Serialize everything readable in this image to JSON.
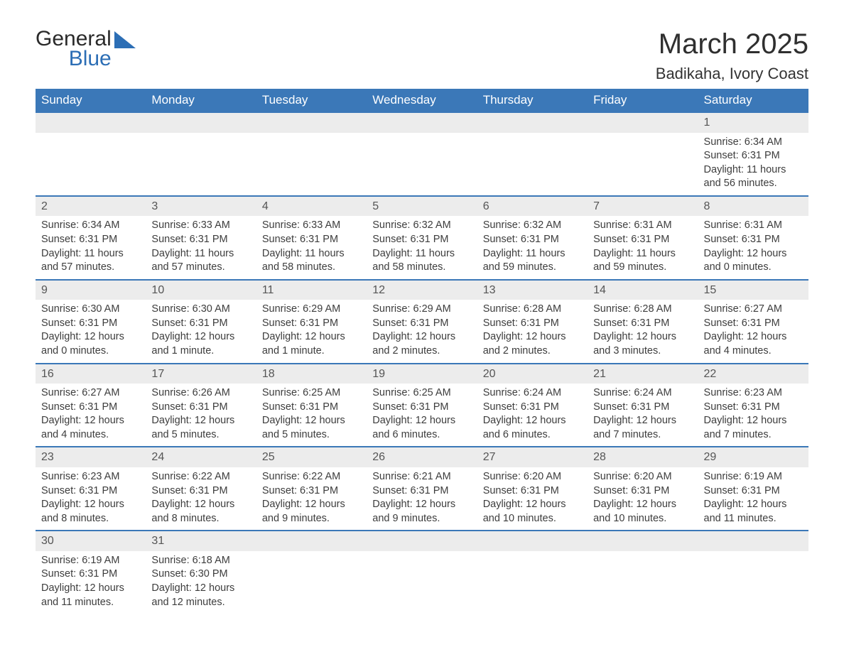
{
  "logo": {
    "general": "General",
    "blue": "Blue"
  },
  "title": "March 2025",
  "subtitle": "Badikaha, Ivory Coast",
  "colors": {
    "header_bg": "#3b78b8",
    "header_text": "#ffffff",
    "daynum_bg": "#ececec",
    "border": "#3b78b8",
    "text": "#3d3d3d"
  },
  "weekdays": [
    "Sunday",
    "Monday",
    "Tuesday",
    "Wednesday",
    "Thursday",
    "Friday",
    "Saturday"
  ],
  "weeks": [
    [
      null,
      null,
      null,
      null,
      null,
      null,
      {
        "n": "1",
        "sunrise": "Sunrise: 6:34 AM",
        "sunset": "Sunset: 6:31 PM",
        "daylight": "Daylight: 11 hours and 56 minutes."
      }
    ],
    [
      {
        "n": "2",
        "sunrise": "Sunrise: 6:34 AM",
        "sunset": "Sunset: 6:31 PM",
        "daylight": "Daylight: 11 hours and 57 minutes."
      },
      {
        "n": "3",
        "sunrise": "Sunrise: 6:33 AM",
        "sunset": "Sunset: 6:31 PM",
        "daylight": "Daylight: 11 hours and 57 minutes."
      },
      {
        "n": "4",
        "sunrise": "Sunrise: 6:33 AM",
        "sunset": "Sunset: 6:31 PM",
        "daylight": "Daylight: 11 hours and 58 minutes."
      },
      {
        "n": "5",
        "sunrise": "Sunrise: 6:32 AM",
        "sunset": "Sunset: 6:31 PM",
        "daylight": "Daylight: 11 hours and 58 minutes."
      },
      {
        "n": "6",
        "sunrise": "Sunrise: 6:32 AM",
        "sunset": "Sunset: 6:31 PM",
        "daylight": "Daylight: 11 hours and 59 minutes."
      },
      {
        "n": "7",
        "sunrise": "Sunrise: 6:31 AM",
        "sunset": "Sunset: 6:31 PM",
        "daylight": "Daylight: 11 hours and 59 minutes."
      },
      {
        "n": "8",
        "sunrise": "Sunrise: 6:31 AM",
        "sunset": "Sunset: 6:31 PM",
        "daylight": "Daylight: 12 hours and 0 minutes."
      }
    ],
    [
      {
        "n": "9",
        "sunrise": "Sunrise: 6:30 AM",
        "sunset": "Sunset: 6:31 PM",
        "daylight": "Daylight: 12 hours and 0 minutes."
      },
      {
        "n": "10",
        "sunrise": "Sunrise: 6:30 AM",
        "sunset": "Sunset: 6:31 PM",
        "daylight": "Daylight: 12 hours and 1 minute."
      },
      {
        "n": "11",
        "sunrise": "Sunrise: 6:29 AM",
        "sunset": "Sunset: 6:31 PM",
        "daylight": "Daylight: 12 hours and 1 minute."
      },
      {
        "n": "12",
        "sunrise": "Sunrise: 6:29 AM",
        "sunset": "Sunset: 6:31 PM",
        "daylight": "Daylight: 12 hours and 2 minutes."
      },
      {
        "n": "13",
        "sunrise": "Sunrise: 6:28 AM",
        "sunset": "Sunset: 6:31 PM",
        "daylight": "Daylight: 12 hours and 2 minutes."
      },
      {
        "n": "14",
        "sunrise": "Sunrise: 6:28 AM",
        "sunset": "Sunset: 6:31 PM",
        "daylight": "Daylight: 12 hours and 3 minutes."
      },
      {
        "n": "15",
        "sunrise": "Sunrise: 6:27 AM",
        "sunset": "Sunset: 6:31 PM",
        "daylight": "Daylight: 12 hours and 4 minutes."
      }
    ],
    [
      {
        "n": "16",
        "sunrise": "Sunrise: 6:27 AM",
        "sunset": "Sunset: 6:31 PM",
        "daylight": "Daylight: 12 hours and 4 minutes."
      },
      {
        "n": "17",
        "sunrise": "Sunrise: 6:26 AM",
        "sunset": "Sunset: 6:31 PM",
        "daylight": "Daylight: 12 hours and 5 minutes."
      },
      {
        "n": "18",
        "sunrise": "Sunrise: 6:25 AM",
        "sunset": "Sunset: 6:31 PM",
        "daylight": "Daylight: 12 hours and 5 minutes."
      },
      {
        "n": "19",
        "sunrise": "Sunrise: 6:25 AM",
        "sunset": "Sunset: 6:31 PM",
        "daylight": "Daylight: 12 hours and 6 minutes."
      },
      {
        "n": "20",
        "sunrise": "Sunrise: 6:24 AM",
        "sunset": "Sunset: 6:31 PM",
        "daylight": "Daylight: 12 hours and 6 minutes."
      },
      {
        "n": "21",
        "sunrise": "Sunrise: 6:24 AM",
        "sunset": "Sunset: 6:31 PM",
        "daylight": "Daylight: 12 hours and 7 minutes."
      },
      {
        "n": "22",
        "sunrise": "Sunrise: 6:23 AM",
        "sunset": "Sunset: 6:31 PM",
        "daylight": "Daylight: 12 hours and 7 minutes."
      }
    ],
    [
      {
        "n": "23",
        "sunrise": "Sunrise: 6:23 AM",
        "sunset": "Sunset: 6:31 PM",
        "daylight": "Daylight: 12 hours and 8 minutes."
      },
      {
        "n": "24",
        "sunrise": "Sunrise: 6:22 AM",
        "sunset": "Sunset: 6:31 PM",
        "daylight": "Daylight: 12 hours and 8 minutes."
      },
      {
        "n": "25",
        "sunrise": "Sunrise: 6:22 AM",
        "sunset": "Sunset: 6:31 PM",
        "daylight": "Daylight: 12 hours and 9 minutes."
      },
      {
        "n": "26",
        "sunrise": "Sunrise: 6:21 AM",
        "sunset": "Sunset: 6:31 PM",
        "daylight": "Daylight: 12 hours and 9 minutes."
      },
      {
        "n": "27",
        "sunrise": "Sunrise: 6:20 AM",
        "sunset": "Sunset: 6:31 PM",
        "daylight": "Daylight: 12 hours and 10 minutes."
      },
      {
        "n": "28",
        "sunrise": "Sunrise: 6:20 AM",
        "sunset": "Sunset: 6:31 PM",
        "daylight": "Daylight: 12 hours and 10 minutes."
      },
      {
        "n": "29",
        "sunrise": "Sunrise: 6:19 AM",
        "sunset": "Sunset: 6:31 PM",
        "daylight": "Daylight: 12 hours and 11 minutes."
      }
    ],
    [
      {
        "n": "30",
        "sunrise": "Sunrise: 6:19 AM",
        "sunset": "Sunset: 6:31 PM",
        "daylight": "Daylight: 12 hours and 11 minutes."
      },
      {
        "n": "31",
        "sunrise": "Sunrise: 6:18 AM",
        "sunset": "Sunset: 6:30 PM",
        "daylight": "Daylight: 12 hours and 12 minutes."
      },
      null,
      null,
      null,
      null,
      null
    ]
  ]
}
